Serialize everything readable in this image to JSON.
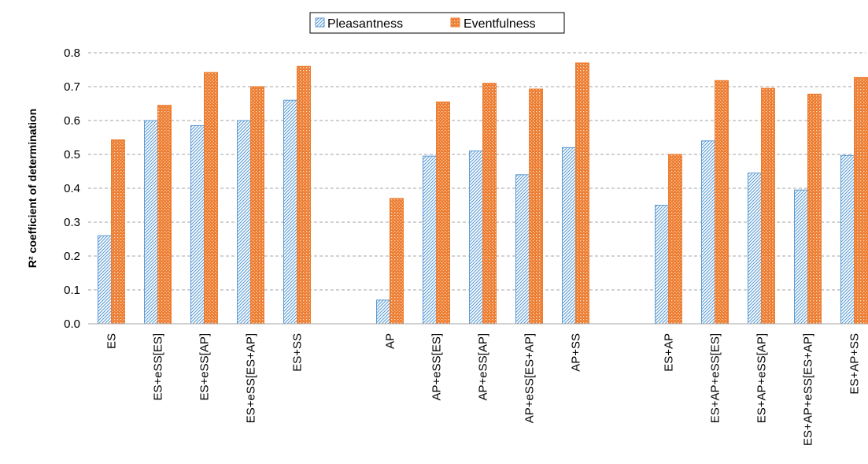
{
  "chart_data": {
    "type": "bar",
    "title": "",
    "xlabel": "",
    "ylabel": "R² coefficient of determination",
    "ylim": [
      0,
      0.8
    ],
    "yticks": [
      "0.0",
      "0.1",
      "0.2",
      "0.3",
      "0.4",
      "0.5",
      "0.6",
      "0.7",
      "0.8"
    ],
    "grid": "horizontal dashed",
    "legend_position": "top-center",
    "groups": [
      [
        "ES",
        "ES+eSS[ES]",
        "ES+eSS[AP]",
        "ES+eSS[ES+AP]",
        "ES+SS"
      ],
      [
        "AP",
        "AP+eSS[ES]",
        "AP+eSS[AP]",
        "AP+eSS[ES+AP]",
        "AP+SS"
      ],
      [
        "ES+AP",
        "ES+AP+eSS[ES]",
        "ES+AP+eSS[AP]",
        "ES+AP+eSS[ES+AP]",
        "ES+AP+SS"
      ]
    ],
    "categories": [
      "ES",
      "ES+eSS[ES]",
      "ES+eSS[AP]",
      "ES+eSS[ES+AP]",
      "ES+SS",
      "AP",
      "AP+eSS[ES]",
      "AP+eSS[AP]",
      "AP+eSS[ES+AP]",
      "AP+SS",
      "ES+AP",
      "ES+AP+eSS[ES]",
      "ES+AP+eSS[AP]",
      "ES+AP+eSS[ES+AP]",
      "ES+AP+SS"
    ],
    "series": [
      {
        "name": "Pleasantness",
        "color": "#5b9bd5",
        "pattern": "diagonal-hatch",
        "values": [
          0.26,
          0.6,
          0.585,
          0.6,
          0.66,
          0.07,
          0.495,
          0.51,
          0.44,
          0.52,
          0.35,
          0.54,
          0.445,
          0.395,
          0.497
        ]
      },
      {
        "name": "Eventfulness",
        "color": "#ed7d31",
        "pattern": "dotted-grid",
        "values": [
          0.543,
          0.645,
          0.742,
          0.7,
          0.76,
          0.37,
          0.655,
          0.71,
          0.693,
          0.77,
          0.5,
          0.718,
          0.695,
          0.678,
          0.727
        ]
      }
    ]
  }
}
